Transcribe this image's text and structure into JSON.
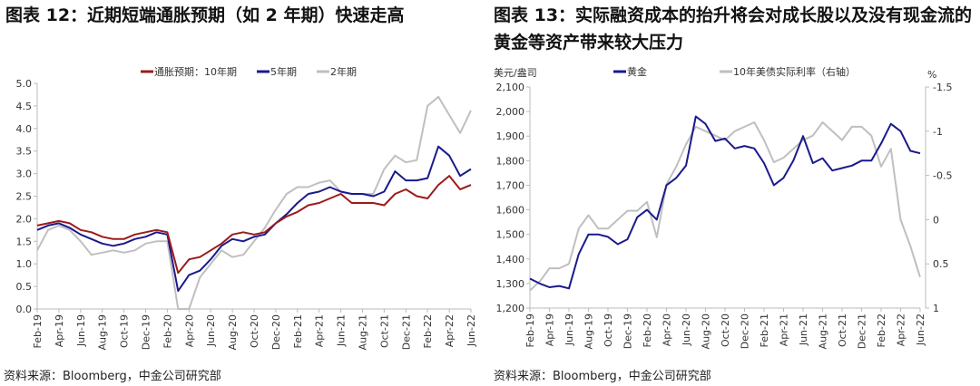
{
  "left": {
    "title": "图表 12：近期短端通胀预期（如 2 年期）快速走高",
    "source": "资料来源：Bloomberg，中金公司研究部"
  },
  "right": {
    "title": "图表 13：实际融资成本的抬升将会对成长股以及没有现金流的黄金等资产带来较大压力",
    "source": "资料来源：Bloomberg，中金公司研究部"
  },
  "chart_data": [
    {
      "type": "line",
      "x": [
        "Feb-19",
        "Mar-19",
        "Apr-19",
        "May-19",
        "Jun-19",
        "Jul-19",
        "Aug-19",
        "Sep-19",
        "Oct-19",
        "Nov-19",
        "Dec-19",
        "Jan-20",
        "Feb-20",
        "Mar-20",
        "Apr-20",
        "May-20",
        "Jun-20",
        "Jul-20",
        "Aug-20",
        "Sep-20",
        "Oct-20",
        "Nov-20",
        "Dec-20",
        "Jan-21",
        "Feb-21",
        "Mar-21",
        "Apr-21",
        "May-21",
        "Jun-21",
        "Jul-21",
        "Aug-21",
        "Sep-21",
        "Oct-21",
        "Nov-21",
        "Dec-21",
        "Jan-22",
        "Feb-22",
        "Mar-22",
        "Apr-22",
        "May-22",
        "Jun-22"
      ],
      "xticks": [
        "Feb-19",
        "Apr-19",
        "Jun-19",
        "Aug-19",
        "Oct-19",
        "Dec-19",
        "Feb-20",
        "Apr-20",
        "Jun-20",
        "Aug-20",
        "Oct-20",
        "Dec-20",
        "Feb-21",
        "Apr-21",
        "Jun-21",
        "Aug-21",
        "Oct-21",
        "Dec-21",
        "Feb-22",
        "Apr-22",
        "Jun-22"
      ],
      "ylim": [
        0,
        5
      ],
      "yticks": [
        "0.0",
        "0.5",
        "1.0",
        "1.5",
        "2.0",
        "2.5",
        "3.0",
        "3.5",
        "4.0",
        "4.5",
        "5.0"
      ],
      "legend": "top",
      "grid": false,
      "series": [
        {
          "name": "通胀预期：10年期",
          "color": "#9b1b1b",
          "values": [
            1.85,
            1.9,
            1.95,
            1.9,
            1.75,
            1.7,
            1.6,
            1.55,
            1.55,
            1.65,
            1.7,
            1.75,
            1.7,
            0.8,
            1.1,
            1.15,
            1.3,
            1.45,
            1.65,
            1.7,
            1.65,
            1.7,
            1.9,
            2.05,
            2.15,
            2.3,
            2.35,
            2.45,
            2.55,
            2.35,
            2.35,
            2.35,
            2.3,
            2.55,
            2.65,
            2.5,
            2.45,
            2.75,
            2.95,
            2.65,
            2.75
          ]
        },
        {
          "name": "5年期",
          "color": "#1a1a8c",
          "values": [
            1.75,
            1.85,
            1.9,
            1.8,
            1.65,
            1.55,
            1.45,
            1.4,
            1.45,
            1.55,
            1.6,
            1.7,
            1.65,
            0.4,
            0.75,
            0.85,
            1.1,
            1.4,
            1.55,
            1.5,
            1.6,
            1.65,
            1.9,
            2.1,
            2.35,
            2.55,
            2.6,
            2.7,
            2.6,
            2.55,
            2.55,
            2.5,
            2.6,
            3.05,
            2.85,
            2.85,
            2.9,
            3.6,
            3.4,
            2.95,
            3.1
          ]
        },
        {
          "name": "2年期",
          "color": "#bfbfbf",
          "values": [
            1.3,
            1.75,
            1.85,
            1.75,
            1.5,
            1.2,
            1.25,
            1.3,
            1.25,
            1.3,
            1.45,
            1.5,
            1.5,
            0,
            0,
            0.7,
            1.0,
            1.3,
            1.15,
            1.2,
            1.5,
            1.8,
            2.2,
            2.55,
            2.7,
            2.7,
            2.8,
            2.85,
            2.6,
            2.55,
            2.55,
            2.55,
            3.1,
            3.4,
            3.25,
            3.3,
            4.5,
            4.7,
            4.3,
            3.9,
            4.4
          ]
        }
      ]
    },
    {
      "type": "line",
      "x": [
        "Feb-19",
        "Mar-19",
        "Apr-19",
        "May-19",
        "Jun-19",
        "Jul-19",
        "Aug-19",
        "Sep-19",
        "Oct-19",
        "Nov-19",
        "Dec-19",
        "Jan-20",
        "Feb-20",
        "Mar-20",
        "Apr-20",
        "May-20",
        "Jun-20",
        "Jul-20",
        "Aug-20",
        "Sep-20",
        "Oct-20",
        "Nov-20",
        "Dec-20",
        "Jan-21",
        "Feb-21",
        "Mar-21",
        "Apr-21",
        "May-21",
        "Jun-21",
        "Jul-21",
        "Aug-21",
        "Sep-21",
        "Oct-21",
        "Nov-21",
        "Dec-21",
        "Jan-22",
        "Feb-22",
        "Mar-22",
        "Apr-22",
        "May-22",
        "Jun-22"
      ],
      "xticks": [
        "Feb-19",
        "Apr-19",
        "Jun-19",
        "Aug-19",
        "Oct-19",
        "Dec-19",
        "Feb-20",
        "Apr-20",
        "Jun-20",
        "Aug-20",
        "Oct-20",
        "Dec-20",
        "Feb-21",
        "Apr-21",
        "Jun-21",
        "Aug-21",
        "Oct-21",
        "Dec-21",
        "Feb-22",
        "Apr-22",
        "Jun-22"
      ],
      "ylabel": "美元/盎司",
      "ylim": [
        1200,
        2100
      ],
      "yticks": [
        "1,200",
        "1,300",
        "1,400",
        "1,500",
        "1,600",
        "1,700",
        "1,800",
        "1,900",
        "2,000",
        "2,100"
      ],
      "y2label": "%",
      "y2lim": [
        1,
        -1.5
      ],
      "y2inverted": true,
      "y2ticks": [
        "1",
        "0.5",
        "0",
        "-0.5",
        "-1",
        "-1.5"
      ],
      "legend": "top",
      "grid": false,
      "series": [
        {
          "name": "黄金",
          "axis": "left",
          "color": "#1a1a8c",
          "values": [
            1320,
            1300,
            1285,
            1290,
            1280,
            1420,
            1500,
            1500,
            1490,
            1460,
            1480,
            1570,
            1600,
            1560,
            1700,
            1730,
            1780,
            1980,
            1950,
            1880,
            1890,
            1850,
            1860,
            1850,
            1790,
            1700,
            1730,
            1800,
            1900,
            1790,
            1810,
            1760,
            1770,
            1780,
            1800,
            1800,
            1870,
            1950,
            1920,
            1840,
            1830
          ]
        },
        {
          "name": "10年美债实际利率（右轴）",
          "axis": "right",
          "color": "#bfbfbf",
          "values": [
            0.8,
            0.7,
            0.55,
            0.55,
            0.5,
            0.1,
            -0.05,
            0.1,
            0.1,
            0.0,
            -0.1,
            -0.1,
            -0.2,
            0.2,
            -0.4,
            -0.6,
            -0.85,
            -1.05,
            -1.0,
            -0.95,
            -0.9,
            -1.0,
            -1.05,
            -1.1,
            -0.9,
            -0.65,
            -0.7,
            -0.8,
            -0.9,
            -0.95,
            -1.1,
            -1.0,
            -0.9,
            -1.05,
            -1.05,
            -0.95,
            -0.6,
            -0.8,
            0.0,
            0.3,
            0.65
          ]
        }
      ]
    }
  ]
}
